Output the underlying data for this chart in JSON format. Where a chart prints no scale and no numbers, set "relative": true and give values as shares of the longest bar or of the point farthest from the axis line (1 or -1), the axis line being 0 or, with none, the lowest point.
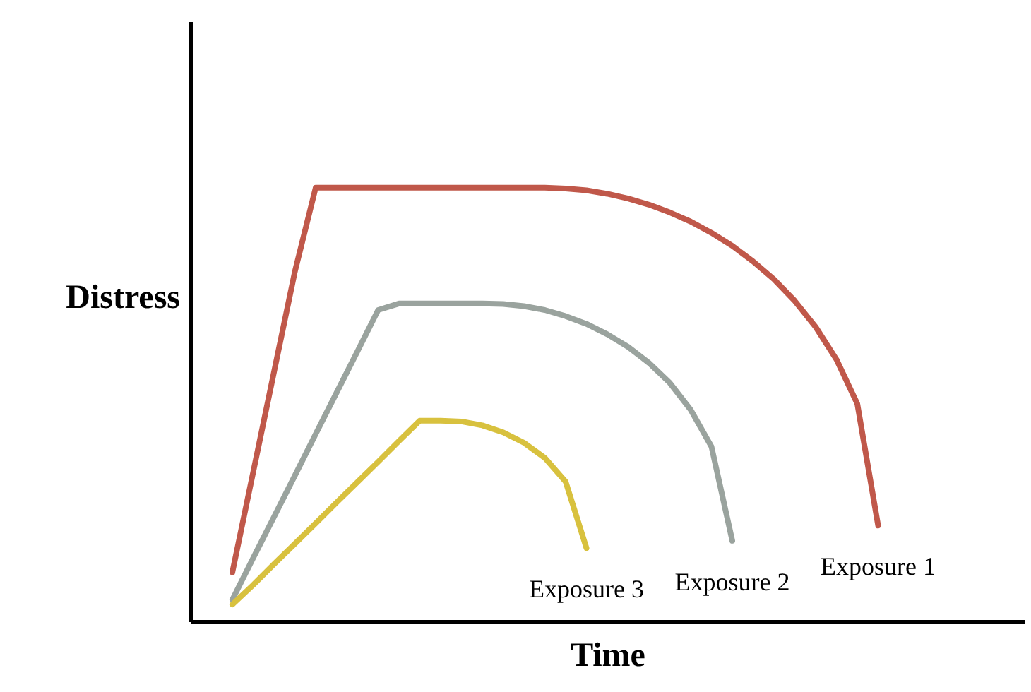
{
  "chart_data": {
    "type": "line",
    "relative": true,
    "xlabel": "Time",
    "ylabel": "Distress",
    "tick_labels": false,
    "grid": false,
    "marker": "none",
    "line_style": "solid",
    "categories": [
      null,
      null,
      null,
      null,
      null,
      null,
      null,
      null,
      null,
      null,
      null,
      null,
      null,
      null,
      null,
      null,
      null,
      null,
      null,
      null,
      null,
      null,
      null,
      null,
      null,
      null,
      null,
      null,
      null,
      null,
      null,
      null
    ],
    "series": [
      {
        "name": "Exposure 1",
        "color": "#c0584a",
        "values": [
          0.113,
          0.344,
          0.575,
          0.806,
          1.0,
          1.0,
          1.0,
          1.0,
          1.0,
          1.0,
          1.0,
          1.0,
          1.0,
          1.0,
          1.0,
          1.0,
          0.998,
          0.994,
          0.986,
          0.975,
          0.961,
          0.943,
          0.922,
          0.896,
          0.866,
          0.83,
          0.789,
          0.739,
          0.679,
          0.604,
          0.502,
          0.221
        ]
      },
      {
        "name": "Exposure 2",
        "color": "#9aa39e",
        "values": [
          0.05,
          0.146,
          0.241,
          0.336,
          0.432,
          0.527,
          0.622,
          0.718,
          0.733,
          0.733,
          0.733,
          0.733,
          0.733,
          0.732,
          0.727,
          0.718,
          0.704,
          0.686,
          0.662,
          0.633,
          0.596,
          0.55,
          0.488,
          0.403,
          0.186,
          null,
          null,
          null,
          null,
          null,
          null,
          null
        ]
      },
      {
        "name": "Exposure 3",
        "color": "#d8c13e",
        "values": [
          0.039,
          0.084,
          0.132,
          0.179,
          0.226,
          0.274,
          0.321,
          0.368,
          0.416,
          0.463,
          0.463,
          0.461,
          0.452,
          0.436,
          0.412,
          0.377,
          0.322,
          0.169,
          null,
          null,
          null,
          null,
          null,
          null,
          null,
          null,
          null,
          null,
          null,
          null,
          null,
          null
        ]
      }
    ]
  }
}
